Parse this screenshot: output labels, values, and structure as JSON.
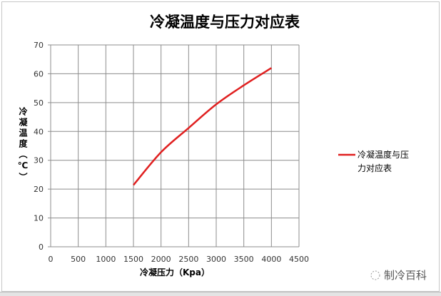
{
  "chart_data": {
    "type": "line",
    "title": "冷凝温度与压力对应表",
    "xlabel": "冷凝压力（Kpa）",
    "ylabel": "冷凝温度（℃）",
    "xlim": [
      0,
      4500
    ],
    "ylim": [
      0,
      70
    ],
    "xticks": [
      0,
      500,
      1000,
      1500,
      2000,
      2500,
      3000,
      3500,
      4000,
      4500
    ],
    "yticks": [
      0,
      10,
      20,
      30,
      40,
      50,
      60,
      70
    ],
    "grid": true,
    "legend_position": "right",
    "series": [
      {
        "name": "冷凝温度与压力对应表",
        "color": "#e02020",
        "x": [
          1500,
          2000,
          2500,
          3000,
          3500,
          4000
        ],
        "y": [
          21.4,
          32.8,
          41.2,
          49.4,
          56.0,
          62.0
        ]
      }
    ]
  },
  "watermark": "制冷百科"
}
